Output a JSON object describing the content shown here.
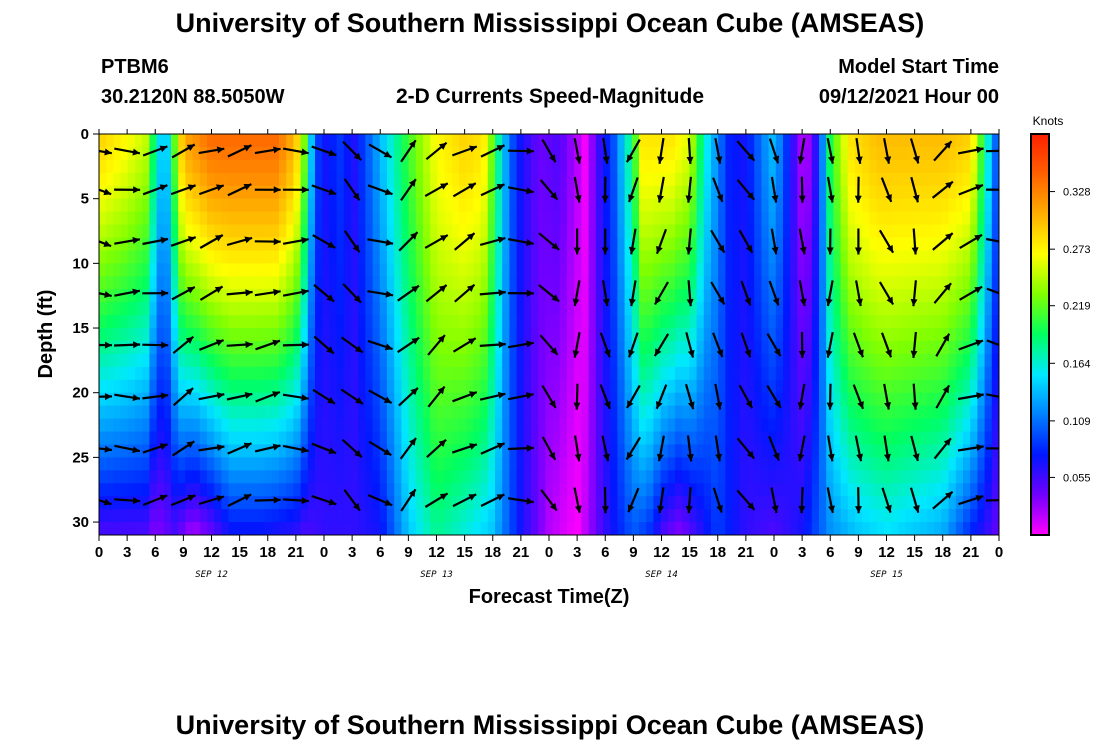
{
  "header": {
    "title": "University of Southern Mississippi Ocean Cube (AMSEAS)",
    "station": "PTBM6",
    "coords": "30.2120N  88.5050W",
    "subtitle": "2-D Currents Speed-Magnitude",
    "model_start_label": "Model Start Time",
    "model_start_value": "09/12/2021 Hour 00"
  },
  "footer": {
    "title": "University of Southern Mississippi Ocean Cube (AMSEAS)"
  },
  "chart_data": {
    "type": "heatmap",
    "title": "2-D Currents Speed-Magnitude",
    "xlabel": "Forecast Time(Z)",
    "ylabel": "Depth (ft)",
    "x_unit_hours": 3,
    "xlim_hours": [
      0,
      96
    ],
    "ylim": [
      0,
      31
    ],
    "y_inverted": true,
    "x_tick_labels": [
      "0",
      "3",
      "6",
      "9",
      "12",
      "15",
      "18",
      "21",
      "0",
      "3",
      "6",
      "9",
      "12",
      "15",
      "18",
      "21",
      "0",
      "3",
      "6",
      "9",
      "12",
      "15",
      "18",
      "21",
      "0",
      "3",
      "6",
      "9",
      "12",
      "15",
      "18",
      "21",
      "0"
    ],
    "day_labels": [
      {
        "label": "SEP 12",
        "hour": 12
      },
      {
        "label": "SEP 13",
        "hour": 36
      },
      {
        "label": "SEP 14",
        "hour": 60
      },
      {
        "label": "SEP 15",
        "hour": 84
      }
    ],
    "y_ticks": [
      0,
      5,
      10,
      15,
      20,
      25,
      30
    ],
    "colorbar": {
      "unit": "Knots",
      "range": [
        0.0,
        0.383
      ],
      "tick_values": [
        0.055,
        0.109,
        0.164,
        0.219,
        0.273,
        0.328
      ],
      "tick_labels": [
        "0.055",
        "0.109",
        "0.164",
        "0.219",
        "0.273",
        "0.328"
      ],
      "colors": [
        "#ff00ff",
        "#7000ff",
        "#0018ff",
        "#0080ff",
        "#00e8ff",
        "#00ff60",
        "#80ff00",
        "#ffff00",
        "#ffb000",
        "#ff6000",
        "#ff2000"
      ]
    },
    "surface_speed_by_hour": [
      [
        0,
        0.29
      ],
      [
        3,
        0.27
      ],
      [
        5,
        0.25
      ],
      [
        6,
        0.18
      ],
      [
        7,
        0.12
      ],
      [
        9,
        0.31
      ],
      [
        12,
        0.34
      ],
      [
        15,
        0.34
      ],
      [
        19,
        0.34
      ],
      [
        21,
        0.3
      ],
      [
        22,
        0.22
      ],
      [
        23,
        0.1
      ],
      [
        24,
        0.07
      ],
      [
        25,
        0.08
      ],
      [
        26,
        0.09
      ],
      [
        27,
        0.06
      ],
      [
        29,
        0.11
      ],
      [
        31,
        0.16
      ],
      [
        33,
        0.21
      ],
      [
        36,
        0.27
      ],
      [
        39,
        0.29
      ],
      [
        41,
        0.28
      ],
      [
        42,
        0.22
      ],
      [
        43,
        0.15
      ],
      [
        44,
        0.1
      ],
      [
        45,
        0.07
      ],
      [
        47,
        0.04
      ],
      [
        49,
        0.05
      ],
      [
        51,
        0.02
      ],
      [
        52,
        0.0
      ],
      [
        53,
        0.05
      ],
      [
        55,
        0.1
      ],
      [
        56,
        0.15
      ],
      [
        57,
        0.2
      ],
      [
        58,
        0.28
      ],
      [
        61,
        0.28
      ],
      [
        63,
        0.26
      ],
      [
        64,
        0.2
      ],
      [
        65,
        0.15
      ],
      [
        66,
        0.12
      ],
      [
        67,
        0.08
      ],
      [
        69,
        0.07
      ],
      [
        71,
        0.12
      ],
      [
        72,
        0.14
      ],
      [
        73,
        0.1
      ],
      [
        74,
        0.06
      ],
      [
        75,
        0.02
      ],
      [
        76,
        0.03
      ],
      [
        77,
        0.1
      ],
      [
        78,
        0.2
      ],
      [
        80,
        0.28
      ],
      [
        83,
        0.3
      ],
      [
        87,
        0.3
      ],
      [
        90,
        0.3
      ],
      [
        93,
        0.29
      ],
      [
        96,
        0.08
      ]
    ],
    "bottom_speed_by_hour": [
      [
        0,
        0.05
      ],
      [
        3,
        0.05
      ],
      [
        5,
        0.05
      ],
      [
        6,
        0.03
      ],
      [
        8,
        0.05
      ],
      [
        10,
        0.02
      ],
      [
        12,
        0.04
      ],
      [
        14,
        0.07
      ],
      [
        17,
        0.07
      ],
      [
        21,
        0.06
      ],
      [
        22,
        0.05
      ],
      [
        24,
        0.06
      ],
      [
        27,
        0.06
      ],
      [
        30,
        0.07
      ],
      [
        33,
        0.14
      ],
      [
        36,
        0.18
      ],
      [
        39,
        0.16
      ],
      [
        42,
        0.14
      ],
      [
        45,
        0.07
      ],
      [
        48,
        0.02
      ],
      [
        51,
        0.0
      ],
      [
        54,
        0.06
      ],
      [
        57,
        0.1
      ],
      [
        59,
        0.08
      ],
      [
        60,
        0.05
      ],
      [
        62,
        0.03
      ],
      [
        64,
        0.06
      ],
      [
        66,
        0.09
      ],
      [
        69,
        0.06
      ],
      [
        72,
        0.05
      ],
      [
        75,
        0.07
      ],
      [
        78,
        0.12
      ],
      [
        81,
        0.14
      ],
      [
        84,
        0.15
      ],
      [
        87,
        0.14
      ],
      [
        90,
        0.13
      ],
      [
        93,
        0.08
      ],
      [
        96,
        0.04
      ]
    ],
    "current_direction_deg_by_hour": [
      [
        0,
        100
      ],
      [
        3,
        90
      ],
      [
        6,
        80
      ],
      [
        9,
        60
      ],
      [
        12,
        70
      ],
      [
        15,
        75
      ],
      [
        18,
        80
      ],
      [
        21,
        90
      ],
      [
        24,
        120
      ],
      [
        27,
        135
      ],
      [
        30,
        110
      ],
      [
        33,
        45
      ],
      [
        36,
        50
      ],
      [
        39,
        60
      ],
      [
        42,
        75
      ],
      [
        45,
        90
      ],
      [
        48,
        140
      ],
      [
        51,
        180
      ],
      [
        54,
        170
      ],
      [
        57,
        200
      ],
      [
        60,
        200
      ],
      [
        63,
        175
      ],
      [
        66,
        160
      ],
      [
        69,
        150
      ],
      [
        72,
        160
      ],
      [
        75,
        180
      ],
      [
        78,
        180
      ],
      [
        81,
        170
      ],
      [
        84,
        160
      ],
      [
        87,
        175
      ],
      [
        90,
        40
      ],
      [
        93,
        70
      ],
      [
        96,
        100
      ]
    ]
  }
}
